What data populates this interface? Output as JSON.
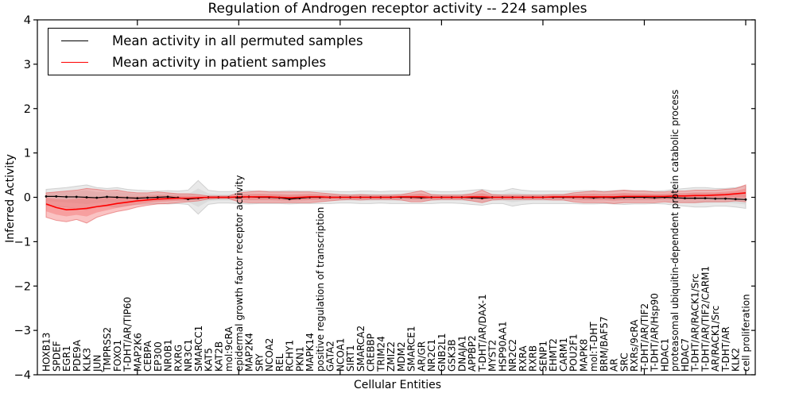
{
  "figure": {
    "title": "Regulation of Androgen receptor activity -- 224 samples",
    "xlabel": "Cellular Entities",
    "ylabel": "Inferred Activity"
  },
  "legend": {
    "items": [
      {
        "label": "Mean activity in all permuted samples",
        "color": "#000000"
      },
      {
        "label": "Mean activity in patient samples",
        "color": "#ff0000"
      }
    ]
  },
  "chart_data": {
    "type": "line",
    "title": "Regulation of Androgen receptor activity -- 224 samples",
    "xlabel": "Cellular Entities",
    "ylabel": "Inferred Activity",
    "ylim": [
      -4,
      4
    ],
    "yticks": [
      -4,
      -3,
      -2,
      -1,
      0,
      1,
      2,
      3,
      4
    ],
    "xtick_every": 10,
    "grid": false,
    "legend_position": "upper left",
    "categories": [
      "HOXB13",
      "SPDEF",
      "EGR1",
      "PDE9A",
      "KLK3",
      "JUN",
      "TMPRSS2",
      "FOXO1",
      "T-DHT/AR/TIP60",
      "MAP2K6",
      "CEBPA",
      "EP300",
      "NR0B1",
      "RXRG",
      "NR3C1",
      "SMARCC1",
      "KAT5",
      "KAT2B",
      "mol:9cRA",
      "epidermal growth factor receptor activity",
      "MAP2K4",
      "SRY",
      "NCOA2",
      "REL",
      "RCHY1",
      "PKN1",
      "MAPK14",
      "positive regulation of transcription",
      "GATA2",
      "NCOA1",
      "SIRT1",
      "SMARCA2",
      "CREBBP",
      "TRIM24",
      "ZMIZ2",
      "MDM2",
      "SMARCE1",
      "AR/GR",
      "NR2C1",
      "GNB2L1",
      "GSK3B",
      "DNAJA1",
      "APPBP2",
      "T-DHT/AR/DAX-1",
      "MYST2",
      "HSP90AA1",
      "NR2C2",
      "RXRA",
      "RXRB",
      "SENP1",
      "EHMT2",
      "CARM1",
      "POU2F1",
      "MAPK8",
      "mol:T-DHT",
      "BRM/BAF57",
      "AR",
      "SRC",
      "RXRs/9cRA",
      "T-DHT/AR/TIF2",
      "T-DHT/AR/Hsp90",
      "HDAC1",
      "proteasomal ubiquitin-dependent protein catabolic process",
      "HDAC7",
      "T-DHT/AR/RACK1/Src",
      "T-DHT/AR/TIF2/CARM1",
      "AR/RACK1/Src",
      "T-DHT/AR",
      "KLK2",
      "cell proliferation"
    ],
    "series": [
      {
        "name": "Mean activity in all permuted samples",
        "color": "#000000",
        "marker": "dot",
        "band_color": "#c8c8c8",
        "band_edge": "#b4b4b4",
        "values": [
          0.02,
          0.02,
          0.01,
          0.01,
          0.0,
          -0.01,
          0.01,
          0.0,
          -0.01,
          -0.02,
          -0.01,
          0.0,
          0.01,
          -0.01,
          -0.04,
          -0.02,
          0.0,
          0.0,
          0.0,
          0.0,
          0.01,
          0.0,
          0.0,
          -0.01,
          -0.04,
          -0.02,
          0.0,
          0.0,
          0.0,
          0.0,
          0.0,
          0.0,
          0.0,
          0.0,
          0.0,
          0.0,
          0.0,
          -0.01,
          0.0,
          0.0,
          0.0,
          0.0,
          -0.01,
          -0.02,
          0.0,
          0.0,
          0.0,
          0.0,
          0.0,
          0.0,
          0.0,
          0.0,
          0.0,
          0.0,
          -0.01,
          0.0,
          -0.01,
          0.0,
          0.0,
          0.0,
          -0.01,
          0.0,
          -0.01,
          -0.02,
          -0.02,
          -0.02,
          -0.03,
          -0.03,
          -0.04,
          -0.05
        ],
        "band_upper": [
          0.18,
          0.2,
          0.22,
          0.25,
          0.28,
          0.22,
          0.2,
          0.22,
          0.18,
          0.16,
          0.15,
          0.14,
          0.15,
          0.14,
          0.16,
          0.38,
          0.16,
          0.13,
          0.13,
          0.14,
          0.15,
          0.14,
          0.14,
          0.14,
          0.15,
          0.14,
          0.14,
          0.14,
          0.14,
          0.13,
          0.13,
          0.14,
          0.14,
          0.13,
          0.14,
          0.14,
          0.14,
          0.14,
          0.14,
          0.13,
          0.13,
          0.14,
          0.16,
          0.18,
          0.14,
          0.14,
          0.2,
          0.16,
          0.14,
          0.14,
          0.14,
          0.14,
          0.14,
          0.15,
          0.15,
          0.14,
          0.15,
          0.16,
          0.15,
          0.15,
          0.14,
          0.15,
          0.18,
          0.2,
          0.22,
          0.22,
          0.2,
          0.2,
          0.22,
          0.25
        ],
        "band_lower": [
          -0.18,
          -0.2,
          -0.22,
          -0.25,
          -0.28,
          -0.22,
          -0.2,
          -0.22,
          -0.18,
          -0.16,
          -0.15,
          -0.14,
          -0.15,
          -0.14,
          -0.16,
          -0.38,
          -0.16,
          -0.13,
          -0.13,
          -0.14,
          -0.15,
          -0.14,
          -0.14,
          -0.14,
          -0.15,
          -0.14,
          -0.14,
          -0.14,
          -0.14,
          -0.13,
          -0.13,
          -0.14,
          -0.14,
          -0.13,
          -0.14,
          -0.14,
          -0.14,
          -0.14,
          -0.14,
          -0.13,
          -0.13,
          -0.14,
          -0.16,
          -0.18,
          -0.14,
          -0.14,
          -0.2,
          -0.16,
          -0.14,
          -0.14,
          -0.14,
          -0.14,
          -0.14,
          -0.15,
          -0.15,
          -0.14,
          -0.15,
          -0.16,
          -0.15,
          -0.15,
          -0.14,
          -0.15,
          -0.18,
          -0.2,
          -0.22,
          -0.22,
          -0.2,
          -0.2,
          -0.22,
          -0.25
        ]
      },
      {
        "name": "Mean activity in patient samples",
        "color": "#ff0000",
        "marker": null,
        "band_color": "#f26868",
        "band_edge": "#e05555",
        "values": [
          -0.15,
          -0.23,
          -0.28,
          -0.27,
          -0.25,
          -0.21,
          -0.18,
          -0.14,
          -0.11,
          -0.08,
          -0.06,
          -0.04,
          -0.03,
          -0.02,
          -0.02,
          -0.01,
          0.0,
          0.0,
          0.0,
          0.01,
          0.01,
          0.01,
          0.01,
          0.0,
          -0.01,
          0.0,
          0.01,
          0.01,
          0.0,
          0.0,
          0.0,
          0.0,
          0.0,
          0.0,
          0.0,
          0.01,
          0.01,
          0.01,
          0.0,
          0.0,
          0.0,
          0.0,
          0.01,
          0.01,
          0.0,
          0.0,
          0.0,
          0.0,
          0.0,
          0.0,
          0.01,
          0.01,
          0.01,
          0.01,
          0.01,
          0.01,
          0.01,
          0.02,
          0.02,
          0.02,
          0.02,
          0.02,
          0.03,
          0.03,
          0.04,
          0.04,
          0.05,
          0.06,
          0.08,
          0.1
        ],
        "band_upper": [
          0.1,
          0.12,
          0.14,
          0.16,
          0.2,
          0.18,
          0.15,
          0.16,
          0.12,
          0.1,
          0.1,
          0.12,
          0.1,
          0.08,
          0.08,
          0.06,
          0.03,
          0.03,
          0.03,
          0.1,
          0.12,
          0.14,
          0.12,
          0.12,
          0.12,
          0.12,
          0.12,
          0.1,
          0.08,
          0.06,
          0.05,
          0.06,
          0.05,
          0.05,
          0.05,
          0.06,
          0.1,
          0.15,
          0.06,
          0.05,
          0.05,
          0.05,
          0.08,
          0.16,
          0.06,
          0.05,
          0.05,
          0.05,
          0.05,
          0.05,
          0.06,
          0.06,
          0.1,
          0.12,
          0.14,
          0.12,
          0.14,
          0.16,
          0.14,
          0.14,
          0.12,
          0.12,
          0.14,
          0.14,
          0.16,
          0.16,
          0.16,
          0.18,
          0.2,
          0.28
        ],
        "band_lower": [
          -0.45,
          -0.52,
          -0.55,
          -0.5,
          -0.58,
          -0.45,
          -0.38,
          -0.32,
          -0.28,
          -0.22,
          -0.18,
          -0.15,
          -0.14,
          -0.12,
          -0.1,
          -0.08,
          -0.04,
          -0.03,
          -0.03,
          -0.1,
          -0.12,
          -0.12,
          -0.12,
          -0.12,
          -0.12,
          -0.12,
          -0.12,
          -0.1,
          -0.08,
          -0.06,
          -0.05,
          -0.06,
          -0.05,
          -0.05,
          -0.05,
          -0.06,
          -0.1,
          -0.1,
          -0.06,
          -0.05,
          -0.05,
          -0.05,
          -0.08,
          -0.12,
          -0.06,
          -0.05,
          -0.05,
          -0.05,
          -0.05,
          -0.05,
          -0.06,
          -0.06,
          -0.1,
          -0.12,
          -0.12,
          -0.12,
          -0.14,
          -0.12,
          -0.12,
          -0.12,
          -0.12,
          -0.1,
          -0.12,
          -0.12,
          -0.12,
          -0.1,
          -0.1,
          -0.1,
          -0.08,
          -0.1
        ]
      }
    ]
  }
}
